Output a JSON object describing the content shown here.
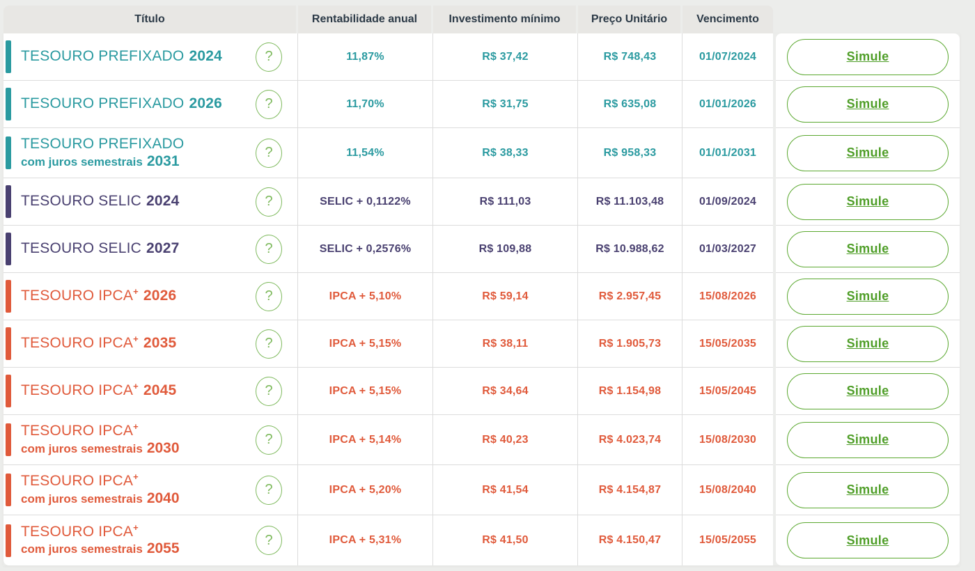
{
  "table": {
    "headers": [
      "Título",
      "Rentabilidade anual",
      "Investimento mínimo",
      "Preço Unitário",
      "Vencimento"
    ],
    "help_icon": "?",
    "simulate_label": "Simule",
    "rows": [
      {
        "theme": "teal",
        "name": "TESOURO PREFIXADO",
        "sup": "",
        "subtitle": "",
        "year": "2024",
        "rate": "11,87%",
        "min": "R$ 37,42",
        "price": "R$ 748,43",
        "due": "01/07/2024"
      },
      {
        "theme": "teal",
        "name": "TESOURO PREFIXADO",
        "sup": "",
        "subtitle": "",
        "year": "2026",
        "rate": "11,70%",
        "min": "R$ 31,75",
        "price": "R$ 635,08",
        "due": "01/01/2026"
      },
      {
        "theme": "teal",
        "name": "TESOURO PREFIXADO",
        "sup": "",
        "subtitle": "com juros semestrais",
        "year": "2031",
        "rate": "11,54%",
        "min": "R$ 38,33",
        "price": "R$ 958,33",
        "due": "01/01/2031"
      },
      {
        "theme": "purple",
        "name": "TESOURO SELIC",
        "sup": "",
        "subtitle": "",
        "year": "2024",
        "rate": "SELIC + 0,1122%",
        "min": "R$ 111,03",
        "price": "R$ 11.103,48",
        "due": "01/09/2024"
      },
      {
        "theme": "purple",
        "name": "TESOURO SELIC",
        "sup": "",
        "subtitle": "",
        "year": "2027",
        "rate": "SELIC + 0,2576%",
        "min": "R$ 109,88",
        "price": "R$ 10.988,62",
        "due": "01/03/2027"
      },
      {
        "theme": "orange",
        "name": "TESOURO IPCA",
        "sup": "+",
        "subtitle": "",
        "year": "2026",
        "rate": "IPCA + 5,10%",
        "min": "R$ 59,14",
        "price": "R$ 2.957,45",
        "due": "15/08/2026"
      },
      {
        "theme": "orange",
        "name": "TESOURO IPCA",
        "sup": "+",
        "subtitle": "",
        "year": "2035",
        "rate": "IPCA + 5,15%",
        "min": "R$ 38,11",
        "price": "R$ 1.905,73",
        "due": "15/05/2035"
      },
      {
        "theme": "orange",
        "name": "TESOURO IPCA",
        "sup": "+",
        "subtitle": "",
        "year": "2045",
        "rate": "IPCA + 5,15%",
        "min": "R$ 34,64",
        "price": "R$ 1.154,98",
        "due": "15/05/2045"
      },
      {
        "theme": "orange",
        "name": "TESOURO IPCA",
        "sup": "+",
        "subtitle": "com juros semestrais",
        "year": "2030",
        "rate": "IPCA + 5,14%",
        "min": "R$ 40,23",
        "price": "R$ 4.023,74",
        "due": "15/08/2030"
      },
      {
        "theme": "orange",
        "name": "TESOURO IPCA",
        "sup": "+",
        "subtitle": "com juros semestrais",
        "year": "2040",
        "rate": "IPCA + 5,20%",
        "min": "R$ 41,54",
        "price": "R$ 4.154,87",
        "due": "15/08/2040"
      },
      {
        "theme": "orange",
        "name": "TESOURO IPCA",
        "sup": "+",
        "subtitle": "com juros semestrais",
        "year": "2055",
        "rate": "IPCA + 5,31%",
        "min": "R$ 41,50",
        "price": "R$ 4.150,47",
        "due": "15/05/2055"
      }
    ]
  },
  "colors": {
    "teal": "#2a9aa0",
    "purple": "#494070",
    "orange": "#e05a3b",
    "green_button": "#5aa82f",
    "green_text": "#4f9e28",
    "help_green": "#7db95c",
    "header_text": "#2c3a47",
    "header_bg": "#e8e7e4",
    "page_bg": "#ecedeb",
    "border": "#dcdcdc"
  }
}
